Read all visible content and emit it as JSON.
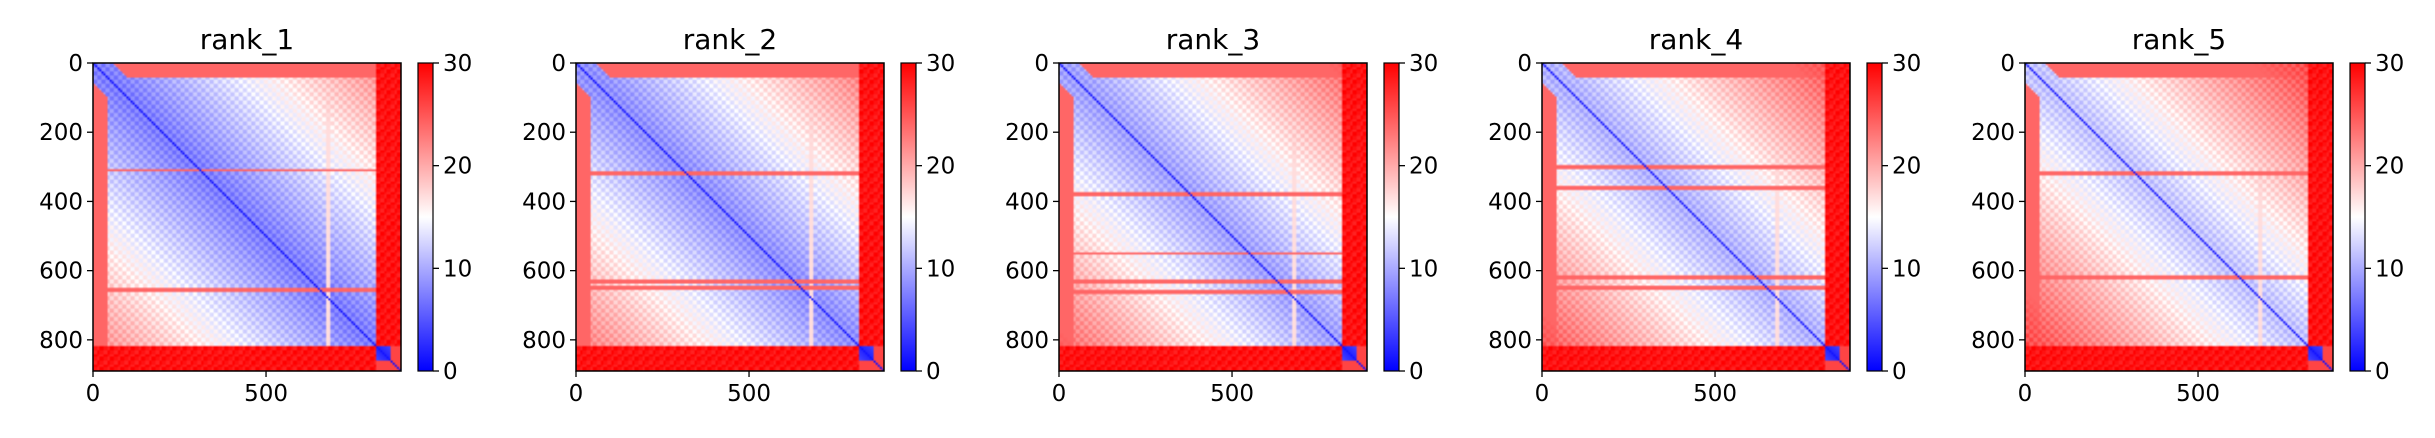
{
  "chart_data": [
    {
      "type": "heatmap",
      "title": "rank_1",
      "xlabel": "",
      "ylabel": "",
      "x_ticks": [
        0,
        500
      ],
      "y_ticks": [
        0,
        200,
        400,
        600,
        800
      ],
      "xlim": [
        0,
        890
      ],
      "ylim": [
        890,
        0
      ],
      "colorbar": {
        "min": 0,
        "max": 30,
        "ticks": [
          0,
          10,
          20,
          30
        ],
        "colormap": "bwr"
      },
      "description_values": {
        "block_upper_left_end": 650,
        "stripe_rows": [
          310,
          655
        ],
        "secondary_block_start": 820,
        "bright_column": 680,
        "typical_block_value": 6,
        "off_block_value": 30
      }
    },
    {
      "type": "heatmap",
      "title": "rank_2",
      "xlabel": "",
      "ylabel": "",
      "x_ticks": [
        0,
        500
      ],
      "y_ticks": [
        0,
        200,
        400,
        600,
        800
      ],
      "xlim": [
        0,
        890
      ],
      "ylim": [
        890,
        0
      ],
      "colorbar": {
        "min": 0,
        "max": 30,
        "ticks": [
          0,
          10,
          20,
          30
        ],
        "colormap": "bwr"
      },
      "description_values": {
        "block_upper_left_end": 640,
        "stripe_rows": [
          320,
          630,
          650
        ],
        "secondary_block_start": 820,
        "bright_column": 680,
        "typical_block_value": 7,
        "off_block_value": 30
      }
    },
    {
      "type": "heatmap",
      "title": "rank_3",
      "xlabel": "",
      "ylabel": "",
      "x_ticks": [
        0,
        500
      ],
      "y_ticks": [
        0,
        200,
        400,
        600,
        800
      ],
      "xlim": [
        0,
        890
      ],
      "ylim": [
        890,
        0
      ],
      "colorbar": {
        "min": 0,
        "max": 30,
        "ticks": [
          0,
          10,
          20,
          30
        ],
        "colormap": "bwr"
      },
      "description_values": {
        "block_upper_left_end": 640,
        "stripe_rows": [
          380,
          550,
          630,
          660
        ],
        "secondary_block_start": 820,
        "bright_column": 680,
        "typical_block_value": 8,
        "off_block_value": 30
      }
    },
    {
      "type": "heatmap",
      "title": "rank_4",
      "xlabel": "",
      "ylabel": "",
      "x_ticks": [
        0,
        500
      ],
      "y_ticks": [
        0,
        200,
        400,
        600,
        800
      ],
      "xlim": [
        0,
        890
      ],
      "ylim": [
        890,
        0
      ],
      "colorbar": {
        "min": 0,
        "max": 30,
        "ticks": [
          0,
          10,
          20,
          30
        ],
        "colormap": "bwr"
      },
      "description_values": {
        "block_upper_left_end": 640,
        "stripe_rows": [
          300,
          360,
          620,
          650
        ],
        "secondary_block_start": 820,
        "bright_column": 680,
        "typical_block_value": 9,
        "off_block_value": 30
      }
    },
    {
      "type": "heatmap",
      "title": "rank_5",
      "xlabel": "",
      "ylabel": "",
      "x_ticks": [
        0,
        500
      ],
      "y_ticks": [
        0,
        200,
        400,
        600,
        800
      ],
      "xlim": [
        0,
        890
      ],
      "ylim": [
        890,
        0
      ],
      "colorbar": {
        "min": 0,
        "max": 30,
        "ticks": [
          0,
          10,
          20,
          30
        ],
        "colormap": "bwr"
      },
      "description_values": {
        "block_upper_left_end": 640,
        "stripe_rows": [
          320,
          620
        ],
        "secondary_block_start": 820,
        "bright_column": 680,
        "typical_block_value": 10,
        "off_block_value": 30
      }
    }
  ]
}
